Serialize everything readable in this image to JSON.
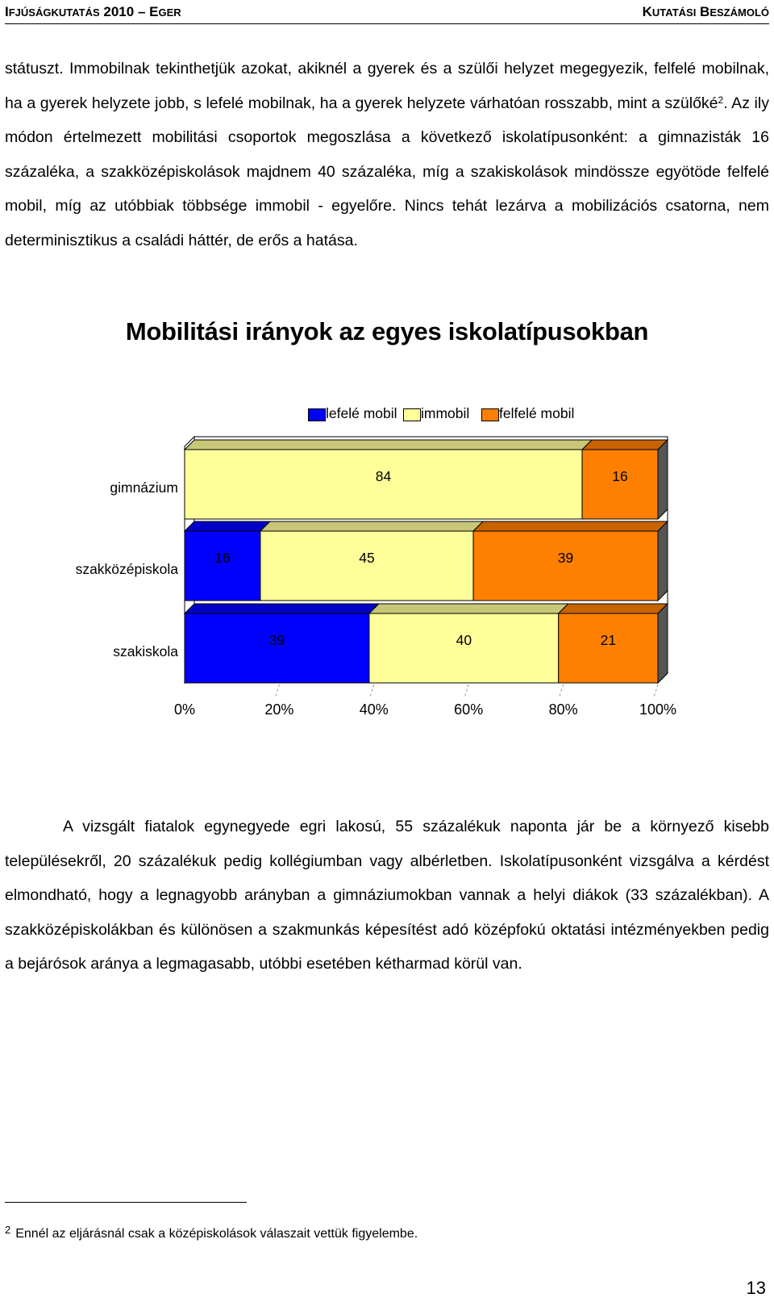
{
  "header": {
    "left": {
      "i": "I",
      "rest": "FJÚSÁGKUTATÁS",
      "year": "2010",
      "dash": "–",
      "e": "E",
      "eger_rest": "GER"
    },
    "right": {
      "k": "K",
      "k_rest": "UTATÁSI",
      "b": "B",
      "b_rest": "ESZÁMOLÓ"
    }
  },
  "para1": {
    "before_sup": "státuszt. Immobilnak tekinthetjük azokat, akiknél a gyerek és a szülői helyzet megegyezik, felfelé mobilnak, ha a gyerek helyzete jobb, s lefelé mobilnak, ha a gyerek helyzete várhatóan rosszabb, mint a szülőké",
    "sup": "2",
    "after_sup": ". Az ily módon értelmezett mobilitási csoportok megoszlása a következő iskolatípusonként: a gimnazisták 16 százaléka, a szakközépiskolások majdnem 40 százaléka, míg a szakiskolások mindössze egyötöde felfelé mobil, míg az utóbbiak többsége immobil - egyelőre. Nincs tehát lezárva a mobilizációs csatorna, nem determinisztikus a családi háttér, de erős a hatása."
  },
  "chart_data": {
    "type": "bar",
    "orientation": "horizontal",
    "stacked": "percent",
    "title": "Mobilitási irányok az egyes iskolatípusokban",
    "categories": [
      "gimnázium",
      "szakközépiskola",
      "szakiskola"
    ],
    "series": [
      {
        "name": "lefelé mobil",
        "color": "#0000ff",
        "values": [
          0,
          16,
          39
        ]
      },
      {
        "name": "immobil",
        "color": "#ffff99",
        "values": [
          84,
          45,
          40
        ]
      },
      {
        "name": "felfelé mobil",
        "color": "#ff8000",
        "values": [
          16,
          39,
          21
        ]
      }
    ],
    "xticks": [
      "0%",
      "20%",
      "40%",
      "60%",
      "80%",
      "100%"
    ],
    "xlim": [
      0,
      100
    ],
    "legend_position": "top",
    "effect": "3d"
  },
  "para2": "A vizsgált fiatalok egynegyede egri lakosú, 55 százalékuk naponta jár be a környező kisebb településekről, 20 százalékuk pedig kollégiumban vagy albérletben. Iskolatípusonként vizsgálva a kérdést elmondható, hogy a legnagyobb arányban a gimnáziumokban vannak a helyi diákok (33 százalékban). A szakközépiskolákban és különösen a szakmunkás képesítést adó középfokú oktatási intézményekben pedig a bejárósok aránya a legmagasabb, utóbbi esetében kétharmad körül van.",
  "footnote": {
    "num": "2",
    "text": "Ennél az eljárásnál csak a középiskolások válaszait vettük figyelembe."
  },
  "page_number": "13"
}
